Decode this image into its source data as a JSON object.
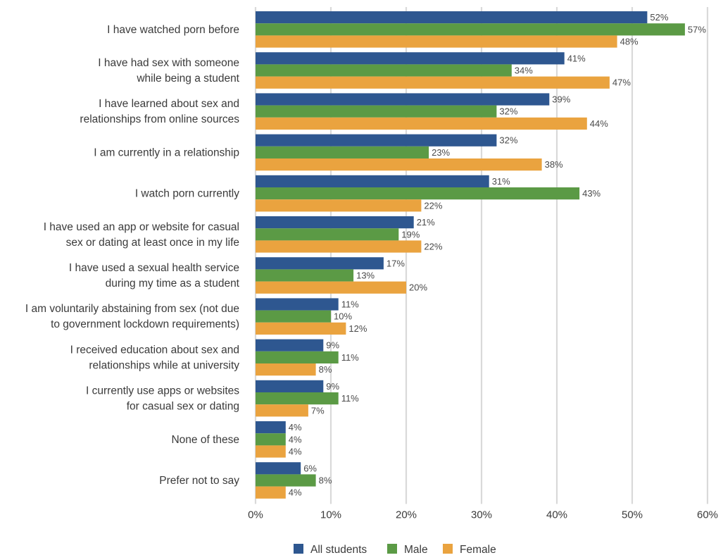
{
  "chart_data": {
    "type": "bar",
    "orientation": "horizontal",
    "title": "",
    "xlabel": "",
    "ylabel": "",
    "xlim": [
      0,
      60
    ],
    "x_ticks": [
      "0%",
      "10%",
      "20%",
      "30%",
      "40%",
      "50%",
      "60%"
    ],
    "grid": true,
    "legend_position": "bottom",
    "categories": [
      [
        "I have watched porn before"
      ],
      [
        "I have had sex with someone",
        "while being a student"
      ],
      [
        "I have learned about sex and",
        "relationships from online sources"
      ],
      [
        "I am currently in a relationship"
      ],
      [
        "I watch porn currently"
      ],
      [
        "I have used an app or website for casual",
        "sex or dating at least once in my life"
      ],
      [
        "I have used a sexual health service",
        "during my time as a student"
      ],
      [
        "I am voluntarily abstaining from sex (not due",
        "to government lockdown requirements)"
      ],
      [
        "I received education about sex and",
        "relationships while at university"
      ],
      [
        "I currently use apps or websites",
        "for casual sex or dating"
      ],
      [
        "None of these"
      ],
      [
        "Prefer not to say"
      ]
    ],
    "series": [
      {
        "name": "All students",
        "color": "#2e5790",
        "values": [
          52,
          41,
          39,
          32,
          31,
          21,
          17,
          11,
          9,
          9,
          4,
          6
        ]
      },
      {
        "name": "Male",
        "color": "#5b9a45",
        "values": [
          57,
          34,
          32,
          23,
          43,
          19,
          13,
          10,
          11,
          11,
          4,
          8
        ]
      },
      {
        "name": "Female",
        "color": "#eaa33f",
        "values": [
          48,
          47,
          44,
          38,
          22,
          22,
          20,
          12,
          8,
          7,
          4,
          4
        ]
      }
    ],
    "value_suffix": "%"
  }
}
